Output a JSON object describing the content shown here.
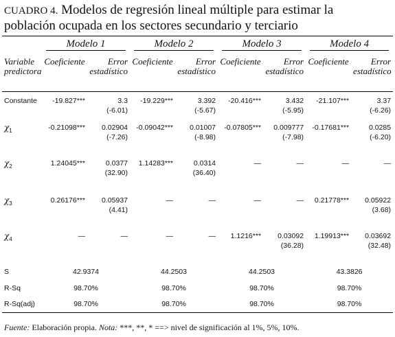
{
  "header": {
    "label": "CUADRO 4.",
    "title": "Modelos de regresión lineal múltiple para estimar la población ocupada en los sectores secundario y terciario"
  },
  "table": {
    "models": [
      "Modelo 1",
      "Modelo 2",
      "Modelo 3",
      "Modelo 4"
    ],
    "variable_header": "Variable predictora",
    "coef_header": "Coeficiente",
    "se_header": "Error estadístico",
    "rows": [
      {
        "label": "Constante",
        "cells": [
          {
            "coef": "-19.827***",
            "se": "3.3",
            "t": "(-6.01)"
          },
          {
            "coef": "-19.229***",
            "se": "3.392",
            "t": "(-5.67)"
          },
          {
            "coef": "-20.416***",
            "se": "3.432",
            "t": "(-5.95)"
          },
          {
            "coef": "-21.107***",
            "se": "3.37",
            "t": "(-6.26)"
          }
        ]
      },
      {
        "symbol": "χ",
        "sub": "1",
        "cells": [
          {
            "coef": "-0.21098***",
            "se": "0.02904",
            "t": "(-7.26)"
          },
          {
            "coef": "-0.09042***",
            "se": "0.01007",
            "t": "(-8.98)"
          },
          {
            "coef": "-0.07805***",
            "se": "0.009777",
            "t": "(-7.98)"
          },
          {
            "coef": "-0.17681***",
            "se": "0.0285",
            "t": "(-6.20)"
          }
        ]
      },
      {
        "symbol": "χ",
        "sub": "2",
        "cells": [
          {
            "coef": "1.24045***",
            "se": "0.0377",
            "t": "(32.90)"
          },
          {
            "coef": "1.14283***",
            "se": "0.0314",
            "t": "(36.40)"
          },
          {
            "coef": "—",
            "se": "—"
          },
          {
            "coef": "—",
            "se": "—"
          }
        ]
      },
      {
        "symbol": "χ",
        "sub": "3",
        "cells": [
          {
            "coef": "0.26176***",
            "se": "0.05937",
            "t": "(4.41)"
          },
          {
            "coef": "—",
            "se": "—"
          },
          {
            "coef": "—",
            "se": "—"
          },
          {
            "coef": "0.21778***",
            "se": "0.05922",
            "t": "(3.68)"
          }
        ]
      },
      {
        "symbol": "χ",
        "sub": "4",
        "cells": [
          {
            "coef": "—",
            "se": "—"
          },
          {
            "coef": "—",
            "se": "—"
          },
          {
            "coef": "1.1216***",
            "se": "0.03092",
            "t": "(36.28)"
          },
          {
            "coef": "1.19913***",
            "se": "0.03692",
            "t": "(32.48)"
          }
        ]
      }
    ],
    "stats": [
      {
        "label": "S",
        "values": [
          "42.9374",
          "44.2503",
          "44.2503",
          "43.3826"
        ]
      },
      {
        "label": "R-Sq",
        "values": [
          "98.70%",
          "98.70%",
          "98.70%",
          "98.70%"
        ]
      },
      {
        "label": "R-Sq(adj)",
        "values": [
          "98.70%",
          "98.70%",
          "98.70%",
          "98.70%"
        ]
      }
    ]
  },
  "footer": {
    "source_label": "Fuente:",
    "source": "Elaboración propia.",
    "note_label": "Nota:",
    "note": "***, **, * ==> nivel de significación al 1%, 5%, 10%."
  }
}
